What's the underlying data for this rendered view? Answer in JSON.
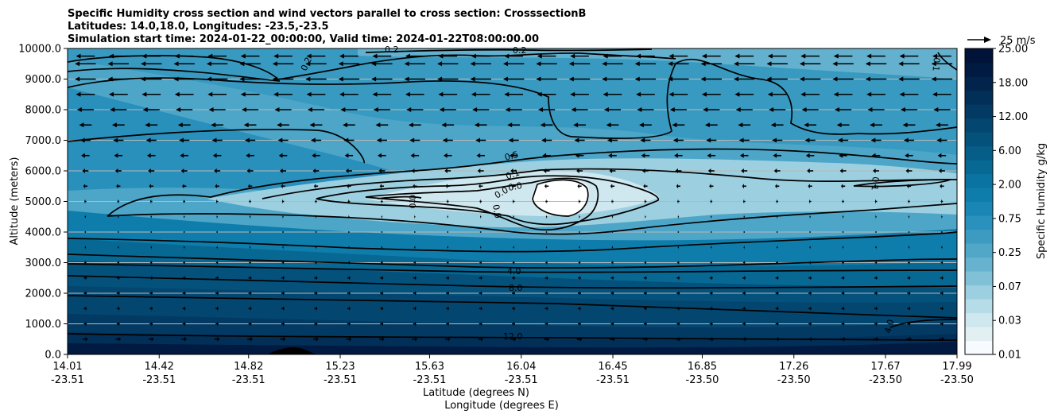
{
  "chart_data": {
    "type": "contour",
    "title_lines": [
      "Specific Humidity cross section and wind vectors parallel to cross section: CrosssectionB",
      "Latitudes: 14.0,18.0, Longitudes: -23.5,-23.5",
      "Simulation start time: 2024-01-22_00:00:00, Valid time: 2024-01-22T08:00:00.00"
    ],
    "ylabel": "Altitude (meters)",
    "xlabel_lines": [
      "Latitude (degrees N)",
      "Longitude (degrees E)"
    ],
    "y_ticks": [
      "0.0",
      "1000.0",
      "2000.0",
      "3000.0",
      "4000.0",
      "5000.0",
      "6000.0",
      "7000.0",
      "8000.0",
      "9000.0",
      "10000.0"
    ],
    "ylim": [
      0,
      10000
    ],
    "x_tick_labels": [
      {
        "lat": "14.01",
        "lon": "-23.51"
      },
      {
        "lat": "14.42",
        "lon": "-23.51"
      },
      {
        "lat": "14.82",
        "lon": "-23.51"
      },
      {
        "lat": "15.23",
        "lon": "-23.51"
      },
      {
        "lat": "15.63",
        "lon": "-23.51"
      },
      {
        "lat": "16.04",
        "lon": "-23.51"
      },
      {
        "lat": "16.45",
        "lon": "-23.51"
      },
      {
        "lat": "16.85",
        "lon": "-23.50"
      },
      {
        "lat": "17.26",
        "lon": "-23.50"
      },
      {
        "lat": "17.67",
        "lon": "-23.50"
      },
      {
        "lat": "17.99",
        "lon": "-23.50"
      }
    ],
    "xlim": [
      14.01,
      17.99
    ],
    "grid": "horizontal",
    "colorbar": {
      "label": "Specific Humidity g/kg",
      "ticks": [
        "0.01",
        "0.03",
        "0.07",
        "0.25",
        "0.75",
        "2.00",
        "6.00",
        "12.00",
        "18.00",
        "25.00"
      ],
      "colors": [
        "#f7fbff",
        "#e3f0f3",
        "#cfe7ee",
        "#b6dce8",
        "#9ccfe0",
        "#81c1d7",
        "#67b3cf",
        "#51a7c8",
        "#3d9bc2",
        "#2a90bc",
        "#1a86b5",
        "#0f7dab",
        "#0a73a1",
        "#076894",
        "#055d88",
        "#04517c",
        "#034670",
        "#023a63",
        "#022f57",
        "#02234b",
        "#011a42",
        "#011339"
      ]
    },
    "quiver_key": {
      "label": "25 m/s",
      "value": 25
    },
    "contour_labels": [
      "0.2",
      "0.2",
      "0.2",
      "0.1",
      "0.5",
      "0.1",
      "0.0",
      "0.0",
      "0.0",
      "0.0",
      "0.1",
      "4.0",
      "8.0",
      "12.0",
      "4.0"
    ],
    "wind_rows": [
      {
        "alt": 9750,
        "u": -9
      },
      {
        "alt": 9500,
        "u": -10
      },
      {
        "alt": 9000,
        "u": -10
      },
      {
        "alt": 8500,
        "u": -9
      },
      {
        "alt": 8000,
        "u": -8
      },
      {
        "alt": 7500,
        "u": -6
      },
      {
        "alt": 7000,
        "u": -5
      },
      {
        "alt": 6500,
        "u": -4
      },
      {
        "alt": 6000,
        "u": -3
      },
      {
        "alt": 5500,
        "u": -2
      },
      {
        "alt": 5000,
        "u": -1
      },
      {
        "alt": 4500,
        "u": -0.5
      },
      {
        "alt": 4000,
        "u": 0.3
      },
      {
        "alt": 3500,
        "u": 0.5
      },
      {
        "alt": 3000,
        "u": 1
      },
      {
        "alt": 2500,
        "u": 1.5
      },
      {
        "alt": 2000,
        "u": 1.5
      },
      {
        "alt": 1500,
        "u": 1.5
      },
      {
        "alt": 1000,
        "u": 1.5
      },
      {
        "alt": 500,
        "u": 2.5
      }
    ]
  }
}
